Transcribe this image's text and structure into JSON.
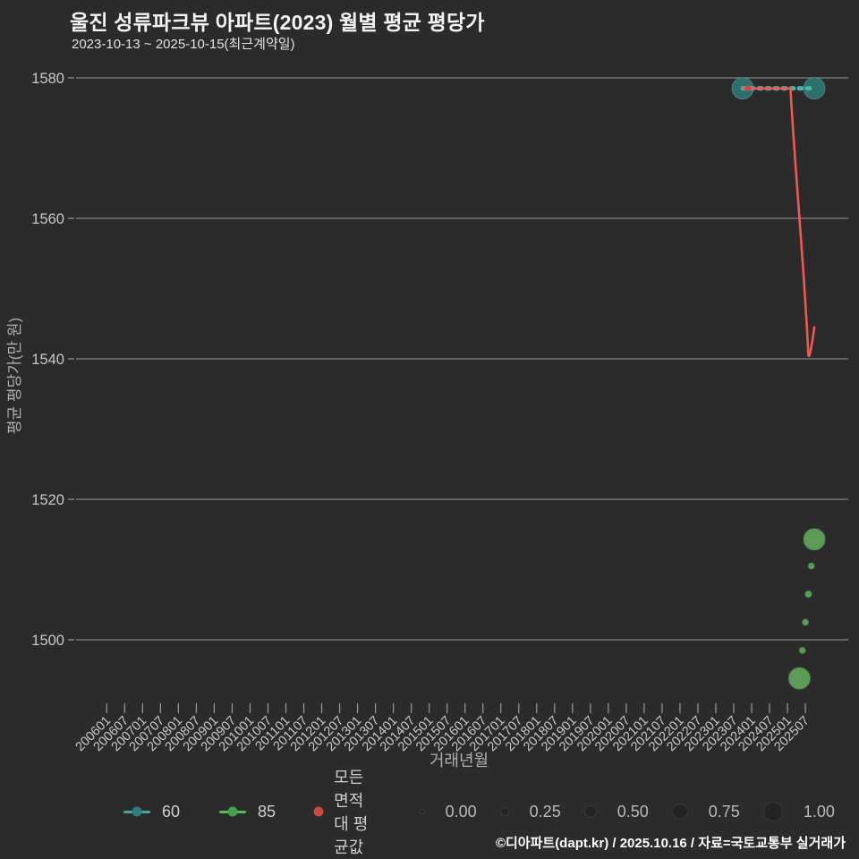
{
  "header": {
    "title": "울진 성류파크뷰 아파트(2023) 월별 평균 평당가",
    "subtitle": "2023-10-13 ~ 2025-10-15(최근계약일)"
  },
  "footer": {
    "credit": "©디아파트(dapt.kr) / 2025.10.16 / 자료=국토교통부 실거래가"
  },
  "colors": {
    "background": "#2b2b2b",
    "grid": "#9a9a9a",
    "tick_text": "#c9c9c9",
    "axis_title": "#b0b0b0",
    "title_text": "#f3f3f3",
    "series_60_line": "#46a59d",
    "series_60_dash": "#4fb3a9",
    "series_60_fill": "#2d6f6b",
    "series_60_dot": "#2e7f79",
    "series_85_line": "#58bb5c",
    "series_85_fill": "#5d9c57",
    "series_85_stroke": "#4a8045",
    "series_85_dot": "#47a04c",
    "series_avg_line": "#ee5a52",
    "series_avg_dot": "#c94943",
    "size_dot": "#232323"
  },
  "chart_data": {
    "type": "scatter",
    "title": "울진 성류파크뷰 아파트(2023) 월별 평균 평당가",
    "subtitle": "2023-10-13 ~ 2025-10-15(최근계약일)",
    "xlabel": "거래년월",
    "ylabel": "평균 평당가(만 원)",
    "ylim": [
      1490,
      1583
    ],
    "yticks": [
      1580,
      1560,
      1540,
      1520,
      1500
    ],
    "grid": "horizontal only",
    "legend_position": "bottom",
    "xticks": [
      "200601",
      "200607",
      "200701",
      "200707",
      "200801",
      "200807",
      "200901",
      "200907",
      "201001",
      "201007",
      "201101",
      "201107",
      "201201",
      "201207",
      "201301",
      "201307",
      "201401",
      "201407",
      "201501",
      "201507",
      "201601",
      "201607",
      "201701",
      "201707",
      "201801",
      "201807",
      "201901",
      "201907",
      "202001",
      "202007",
      "202101",
      "202107",
      "202201",
      "202207",
      "202301",
      "202307",
      "202401",
      "202407",
      "202501",
      "202507"
    ],
    "series": [
      {
        "name": "60",
        "style": "bubbles joined by dashed line",
        "points": [
          {
            "month": "202310",
            "value": 1578.5,
            "size": 1.0
          },
          {
            "month": "202510",
            "value": 1578.5,
            "size": 1.0
          }
        ]
      },
      {
        "name": "85",
        "style": "bubbles only",
        "points": [
          {
            "month": "202505",
            "value": 1494.5,
            "size": 1.0
          },
          {
            "month": "202506",
            "value": 1498.5,
            "size": 0.1
          },
          {
            "month": "202507",
            "value": 1502.5,
            "size": 0.1
          },
          {
            "month": "202508",
            "value": 1506.5,
            "size": 0.12
          },
          {
            "month": "202509",
            "value": 1510.5,
            "size": 0.1
          },
          {
            "month": "202510",
            "value": 1514.3,
            "size": 1.0
          }
        ]
      },
      {
        "name": "모든 면적대 평균값",
        "style": "line",
        "points": [
          {
            "month": "202310",
            "value": 1578.5
          },
          {
            "month": "202502",
            "value": 1578.5
          },
          {
            "month": "202508",
            "value": 1540.5
          },
          {
            "month": "202510",
            "value": 1544.5
          }
        ]
      }
    ],
    "legend": {
      "items": [
        {
          "label": "60"
        },
        {
          "label": "85"
        },
        {
          "label": "모든 면적대 평균값"
        }
      ],
      "size_scale": [
        {
          "label": "0.00",
          "size": 0.0
        },
        {
          "label": "0.25",
          "size": 0.25
        },
        {
          "label": "0.50",
          "size": 0.5
        },
        {
          "label": "0.75",
          "size": 0.75
        },
        {
          "label": "1.00",
          "size": 1.0
        }
      ]
    }
  }
}
